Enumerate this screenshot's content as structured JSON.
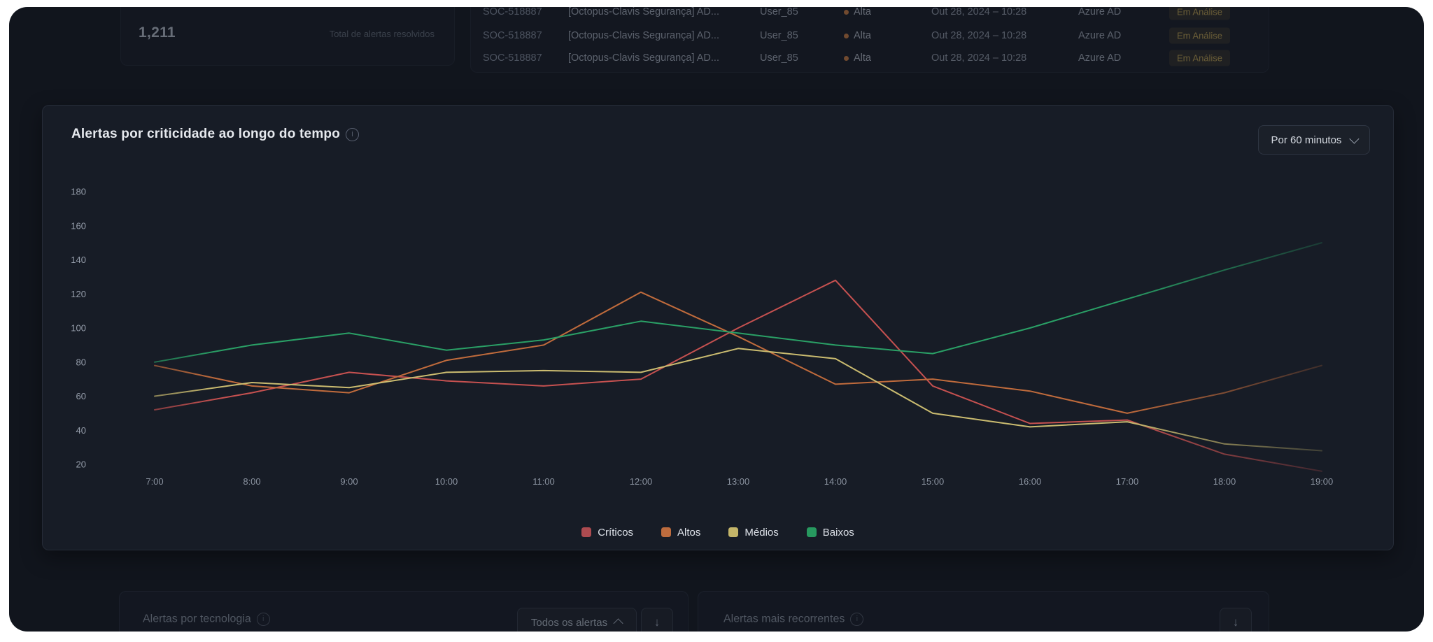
{
  "top": {
    "stat_card": {
      "value": "1,211",
      "label": "Total de alertas resolvidos"
    },
    "alerts_table": {
      "rows": [
        {
          "id": "SOC-518887",
          "title": "[Octopus-Clavis Segurança] AD...",
          "user": "User_85",
          "severity": "Alta",
          "datetime": "Out 28, 2024 – 10:28",
          "tech": "Azure AD",
          "status": "Em Análise"
        },
        {
          "id": "SOC-518887",
          "title": "[Octopus-Clavis Segurança] AD...",
          "user": "User_85",
          "severity": "Alta",
          "datetime": "Out 28, 2024 – 10:28",
          "tech": "Azure AD",
          "status": "Em Análise"
        },
        {
          "id": "SOC-518887",
          "title": "[Octopus-Clavis Segurança] AD...",
          "user": "User_85",
          "severity": "Alta",
          "datetime": "Out 28, 2024 – 10:28",
          "tech": "Azure AD",
          "status": "Em Análise"
        }
      ]
    }
  },
  "chart_card": {
    "title": "Alertas por criticidade ao longo do tempo",
    "interval_dropdown": {
      "value": "Por 60 minutos"
    }
  },
  "chart_data": {
    "type": "line",
    "title": "Alertas por criticidade ao longo do tempo",
    "x": [
      "7:00",
      "8:00",
      "9:00",
      "10:00",
      "11:00",
      "12:00",
      "13:00",
      "14:00",
      "15:00",
      "16:00",
      "17:00",
      "18:00",
      "19:00"
    ],
    "series": [
      {
        "name": "Críticos",
        "color": "#c65150",
        "swatch": "#ad4b50",
        "values": [
          52,
          62,
          74,
          69,
          66,
          70,
          100,
          128,
          66,
          44,
          46,
          26,
          16
        ]
      },
      {
        "name": "Altos",
        "color": "#c06b3c",
        "swatch": "#bd6c3e",
        "values": [
          78,
          66,
          62,
          81,
          90,
          121,
          95,
          67,
          70,
          63,
          50,
          62,
          78
        ]
      },
      {
        "name": "Médios",
        "color": "#cbbc70",
        "swatch": "#c4b569",
        "values": [
          60,
          68,
          65,
          74,
          75,
          74,
          88,
          82,
          50,
          42,
          45,
          32,
          28
        ]
      },
      {
        "name": "Baixos",
        "color": "#2aa066",
        "swatch": "#27995f",
        "values": [
          80,
          90,
          97,
          87,
          93,
          104,
          97,
          90,
          85,
          100,
          117,
          134,
          150
        ]
      }
    ],
    "ylim": [
      20,
      180
    ],
    "yticks": [
      20,
      40,
      60,
      80,
      100,
      120,
      140,
      160,
      180
    ],
    "grid": false,
    "legend_position": "bottom"
  },
  "bottom": {
    "tech_card": {
      "title": "Alertas por tecnologia",
      "filter_dropdown": {
        "value": "Todos os alertas"
      }
    },
    "recurrent_card": {
      "title": "Alertas mais recorrentes"
    }
  },
  "icons": {
    "download": "↓",
    "info": "i"
  },
  "colors": {
    "page_bg": "#11151d",
    "card_bg": "#171c26",
    "accent_badge": "#b3994d"
  }
}
